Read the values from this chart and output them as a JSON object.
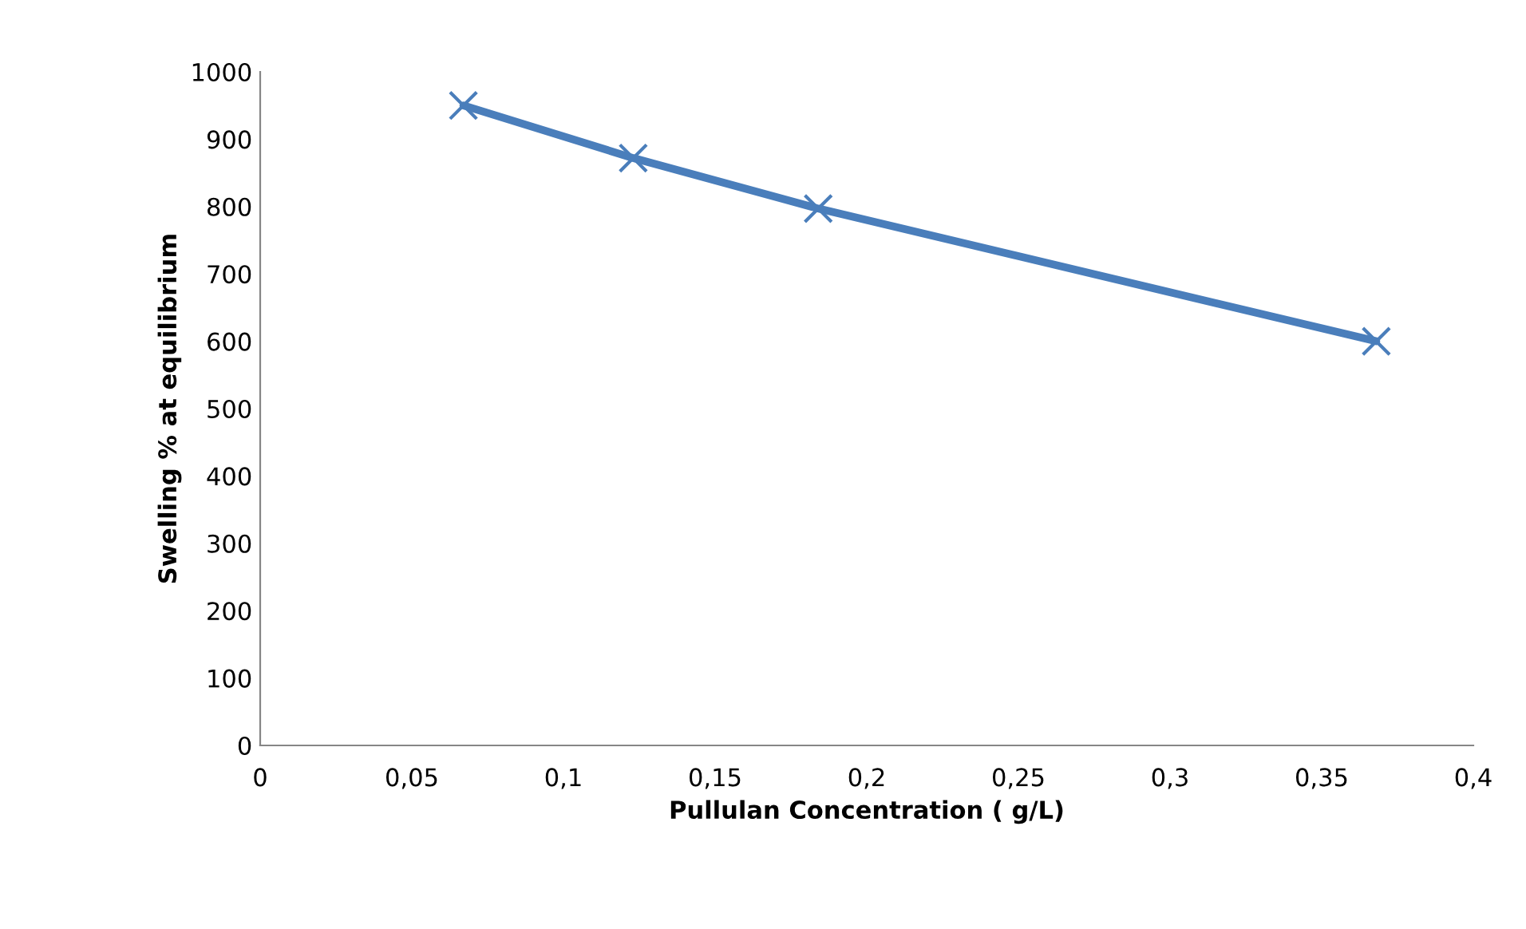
{
  "chart_data": {
    "type": "line",
    "xlabel": "Pullulan Concentration ( g/L)",
    "ylabel": "Swelling % at equilibrium",
    "x": [
      0.067,
      0.123,
      0.184,
      0.368
    ],
    "series": [
      {
        "color": "#4a7ebb",
        "values": [
          950,
          872,
          797,
          600
        ]
      }
    ],
    "xlim": [
      0,
      0.4
    ],
    "xticks": [
      0,
      {
        "value": 0.05,
        "label": "0,05"
      },
      {
        "value": 0.1,
        "label": "0,1"
      },
      {
        "value": 0.15,
        "label": "0,15"
      },
      {
        "value": 0.2,
        "label": "0,2"
      },
      {
        "value": 0.25,
        "label": "0,25"
      },
      {
        "value": 0.3,
        "label": "0,3"
      },
      {
        "value": 0.35,
        "label": "0,35"
      },
      {
        "value": 0.4,
        "label": "0,4"
      }
    ],
    "ylim": [
      0,
      1000
    ],
    "yticks": [
      0,
      100,
      200,
      300,
      400,
      500,
      600,
      700,
      800,
      900,
      1000
    ],
    "grid": false,
    "legend": false,
    "marker": "cross",
    "line_style": "solid"
  }
}
